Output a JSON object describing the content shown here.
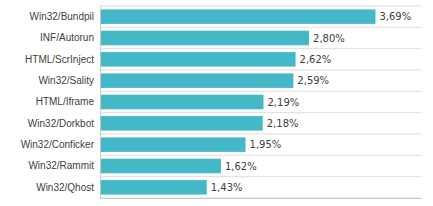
{
  "chart_data": {
    "type": "bar",
    "orientation": "horizontal",
    "categories": [
      "Win32/Bundpil",
      "INF/Autorun",
      "HTML/ScrInject",
      "Win32/Sality",
      "HTML/Iframe",
      "Win32/Dorkbot",
      "Win32/Conficker",
      "Win32/Rammit",
      "Win32/Qhost"
    ],
    "values": [
      3.69,
      2.8,
      2.62,
      2.59,
      2.19,
      2.18,
      1.95,
      1.62,
      1.43
    ],
    "value_labels": [
      "3,69%",
      "2,80%",
      "2,62%",
      "2,59%",
      "2,19%",
      "2,18%",
      "1,95%",
      "1,62%",
      "1,43%"
    ],
    "color": "#45B8C8",
    "xlim": [
      0,
      4.3
    ],
    "data_labels": true,
    "tick_labels": "y"
  }
}
